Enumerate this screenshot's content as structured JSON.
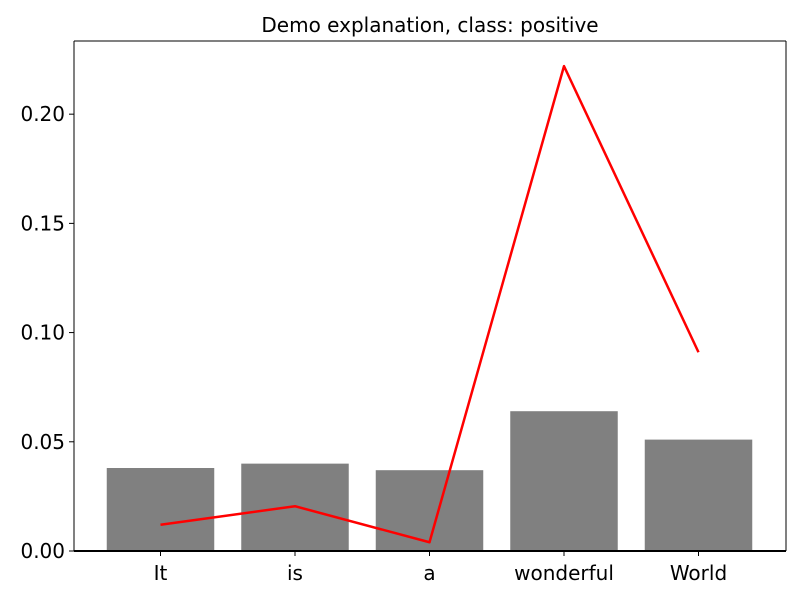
{
  "chart_data": {
    "type": "bar",
    "title": "Demo explanation, class: positive",
    "xlabel": "",
    "ylabel": "",
    "categories": [
      "It",
      "is",
      "a",
      "wonderful",
      "World"
    ],
    "bar_values": [
      0.038,
      0.04,
      0.037,
      0.064,
      0.051
    ],
    "line_values": [
      0.012,
      0.0205,
      0.004,
      0.222,
      0.091
    ],
    "ylim": [
      0.0,
      0.2335
    ],
    "yticks": [
      "0.00",
      "0.05",
      "0.10",
      "0.15",
      "0.20"
    ],
    "ytick_values": [
      0.0,
      0.05,
      0.1,
      0.15,
      0.2
    ],
    "bar_color": "#808080",
    "line_color": "#ff0000",
    "grid": false
  }
}
